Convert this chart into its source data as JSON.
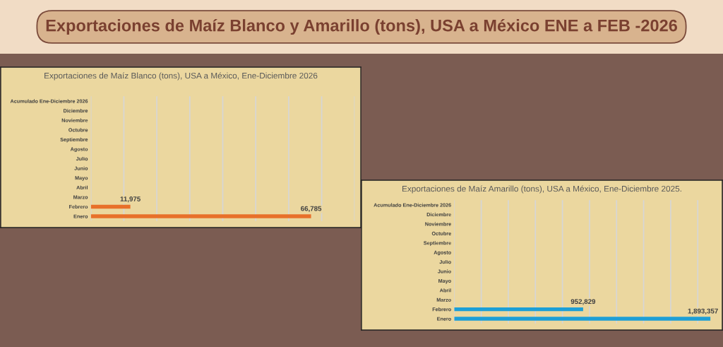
{
  "chart_data": [
    {
      "type": "other",
      "title": "Exportaciones de Maíz Blanco y Amarillo (tons), USA a México ENE a FEB -2026"
    },
    {
      "type": "bar",
      "orientation": "horizontal",
      "title": "Exportaciones de Maíz Blanco (tons), USA a México, Ene-Diciembre 2026",
      "categories": [
        "Acumulado Ene-Diciembre 2026",
        "Diciembre",
        "Noviembre",
        "Octubre",
        "Septiembre",
        "Agosto",
        "Julio",
        "Junio",
        "Mayo",
        "Abril",
        "Marzo",
        "Febrero",
        "Enero"
      ],
      "series": [
        {
          "color": "#e8702a",
          "values": [
            null,
            null,
            null,
            null,
            null,
            null,
            null,
            null,
            null,
            null,
            null,
            11975,
            66785
          ],
          "value_labels": [
            null,
            null,
            null,
            null,
            null,
            null,
            null,
            null,
            null,
            null,
            null,
            "11,975",
            "66,785"
          ]
        }
      ],
      "xlim": [
        0,
        80000
      ],
      "xticks": [
        {
          "value": 0,
          "label": null
        },
        {
          "value": 10000,
          "label": null
        },
        {
          "value": 20000,
          "label": null
        },
        {
          "value": 30000,
          "label": null
        },
        {
          "value": 40000,
          "label": null
        },
        {
          "value": 50000,
          "label": null
        },
        {
          "value": 60000,
          "label": null
        },
        {
          "value": 70000,
          "label": null
        },
        {
          "value": 80000,
          "label": null
        }
      ],
      "grid": "x",
      "tick_labels": "y"
    },
    {
      "type": "bar",
      "orientation": "horizontal",
      "title": "Exportaciones de Maíz Amarillo (tons), USA a México, Ene-Diciembre 2025.",
      "categories": [
        "Acumulado Ene-Diciembre 2026",
        "Diciembre",
        "Noviembre",
        "Octubre",
        "Septiembre",
        "Agosto",
        "Julio",
        "Junio",
        "Mayo",
        "Abril",
        "Marzo",
        "Febrero",
        "Enero"
      ],
      "series": [
        {
          "color": "#1d9fd6",
          "values": [
            null,
            null,
            null,
            null,
            null,
            null,
            null,
            null,
            null,
            null,
            null,
            952829,
            1893357
          ],
          "value_labels": [
            null,
            null,
            null,
            null,
            null,
            null,
            null,
            null,
            null,
            null,
            null,
            "952,829",
            "1,893,357"
          ]
        }
      ],
      "xlim": [
        0,
        1900000
      ],
      "xticks": [
        {
          "value": 0,
          "label": null
        },
        {
          "value": 200000,
          "label": null
        },
        {
          "value": 400000,
          "label": null
        },
        {
          "value": 600000,
          "label": null
        },
        {
          "value": 800000,
          "label": null
        },
        {
          "value": 1000000,
          "label": null
        },
        {
          "value": 1200000,
          "label": null
        },
        {
          "value": 1400000,
          "label": null
        },
        {
          "value": 1600000,
          "label": null
        },
        {
          "value": 1800000,
          "label": null
        }
      ],
      "grid": "x",
      "tick_labels": "y"
    }
  ]
}
